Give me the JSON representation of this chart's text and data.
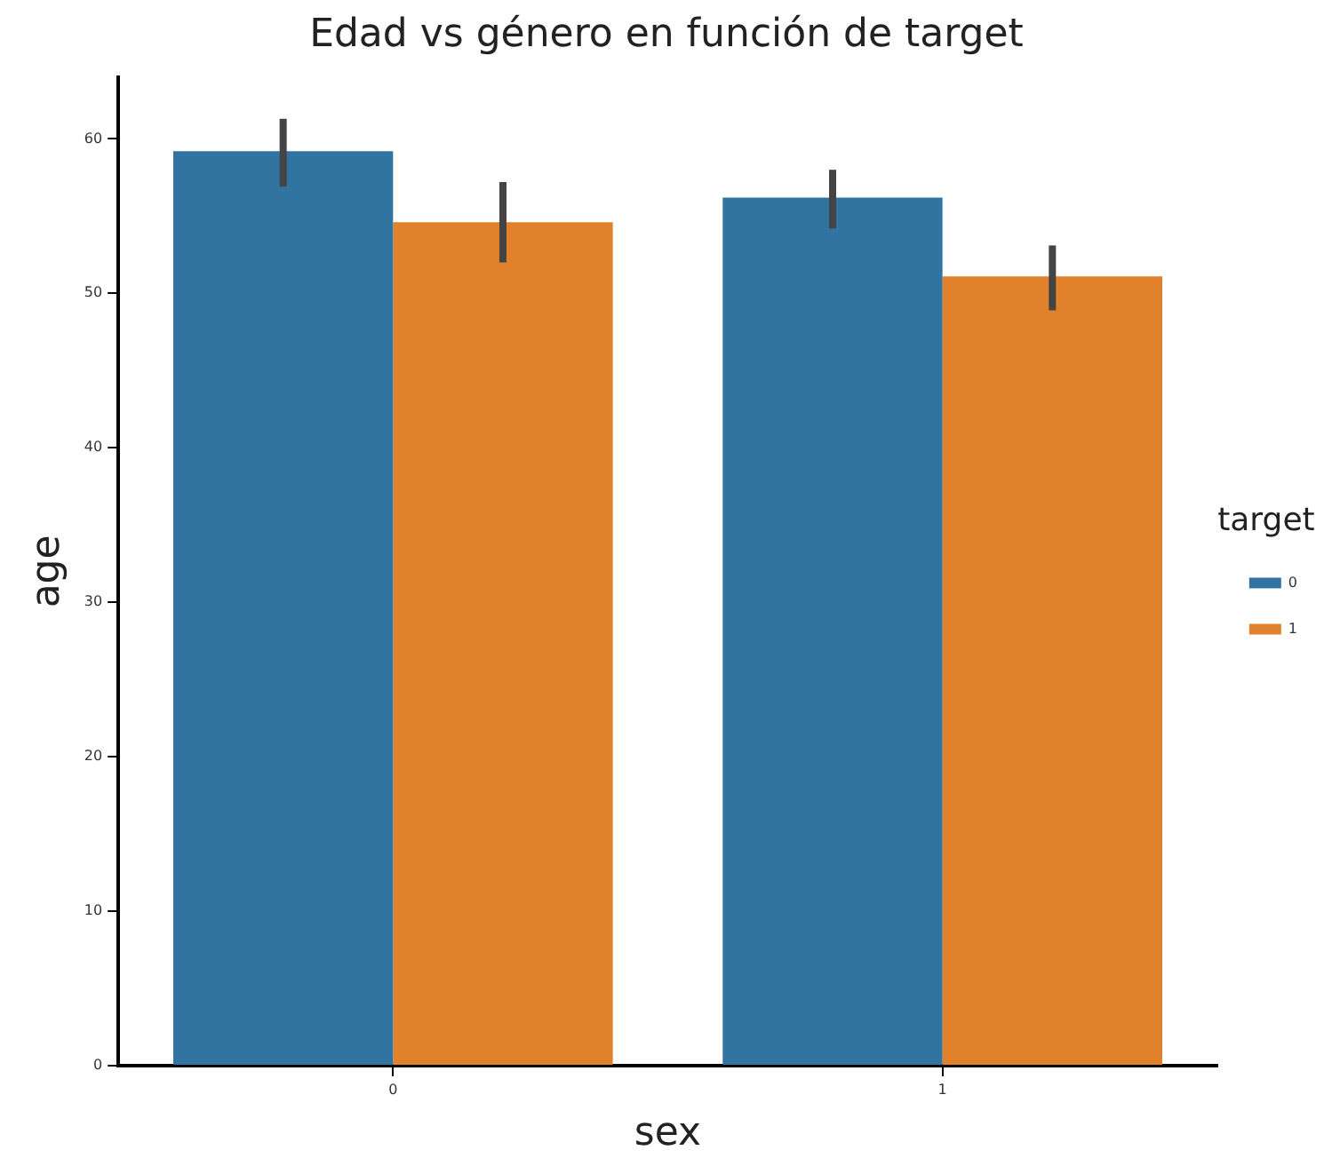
{
  "chart_data": {
    "type": "bar",
    "title": "Edad vs género en función de target",
    "xlabel": "sex",
    "ylabel": "age",
    "legend_title": "target",
    "categories": [
      "0",
      "1"
    ],
    "series": [
      {
        "name": "0",
        "color": "#3274a1",
        "values": [
          59.2,
          56.2
        ],
        "errors": [
          [
            56.9,
            61.3
          ],
          [
            54.2,
            58.0
          ]
        ]
      },
      {
        "name": "1",
        "color": "#e1812c",
        "values": [
          54.6,
          51.1
        ],
        "errors": [
          [
            52.0,
            57.2
          ],
          [
            48.9,
            53.1
          ]
        ]
      }
    ],
    "ylim": [
      0,
      64
    ],
    "yticks": [
      0,
      10,
      20,
      30,
      40,
      50,
      60
    ],
    "grid": false,
    "legend": "right"
  }
}
